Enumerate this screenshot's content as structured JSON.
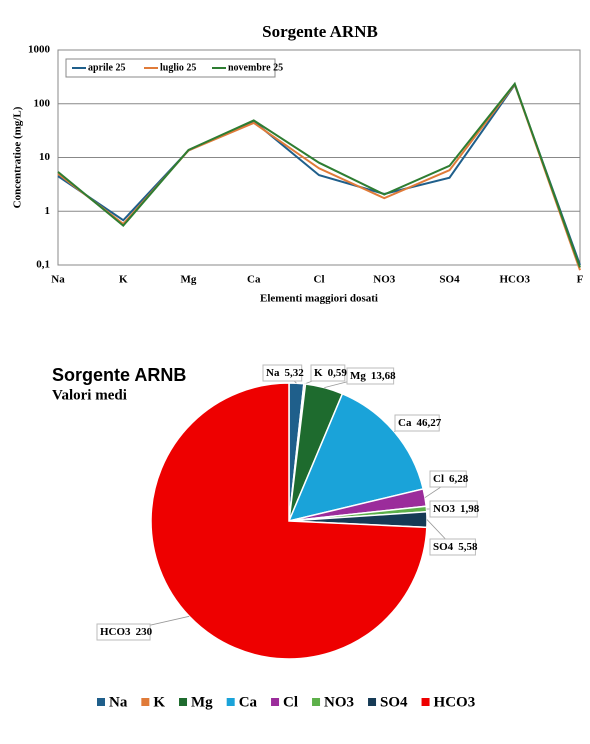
{
  "charts_title_note": null,
  "chart_data": [
    {
      "type": "line",
      "title": "Sorgente ARNB",
      "x_label": "Elementi maggiori dosati",
      "y_label": "Concentratioe (mg/L)",
      "categories": [
        "Na",
        "K",
        "Mg",
        "Ca",
        "Cl",
        "NO3",
        "SO4",
        "HCO3",
        "F"
      ],
      "log_scale": true,
      "grid": true,
      "ylim": [
        0.1,
        1000
      ],
      "yticks": [
        {
          "value": 0.1,
          "label": "0,1"
        },
        1,
        10,
        100,
        1000
      ],
      "series": [
        {
          "name": "aprile 25",
          "color": "#1f5f8b",
          "values": [
            4.5,
            0.68,
            13.5,
            47,
            4.7,
            2.1,
            4.2,
            225,
            0.1
          ]
        },
        {
          "name": "luglio 25",
          "color": "#e07b39",
          "values": [
            5,
            0.58,
            13.5,
            44,
            6.3,
            1.75,
            5.8,
            230,
            0.08
          ]
        },
        {
          "name": "novembre 25",
          "color": "#2e7d32",
          "values": [
            5.4,
            0.54,
            13.8,
            49,
            8,
            2.05,
            7,
            235,
            0.09
          ]
        }
      ]
    },
    {
      "type": "pie",
      "title": "Sorgente ARNB",
      "subtitle": "Valori medi",
      "categories": [
        "Na",
        "K",
        "Mg",
        "Ca",
        "Cl",
        "NO3",
        "SO4",
        "HCO3"
      ],
      "values": [
        5.32,
        0.59,
        13.68,
        46.27,
        6.28,
        1.98,
        5.58,
        230
      ],
      "value_labels": [
        "5,32",
        "0,59",
        "13,68",
        "46,27",
        "6,28",
        "1,98",
        "5,58",
        "230"
      ],
      "colors": [
        "#1f5f8b",
        "#e07b39",
        "#1e6b2e",
        "#1aa3d9",
        "#9b2c9b",
        "#5db04a",
        "#163a55",
        "#ee0000"
      ]
    }
  ]
}
